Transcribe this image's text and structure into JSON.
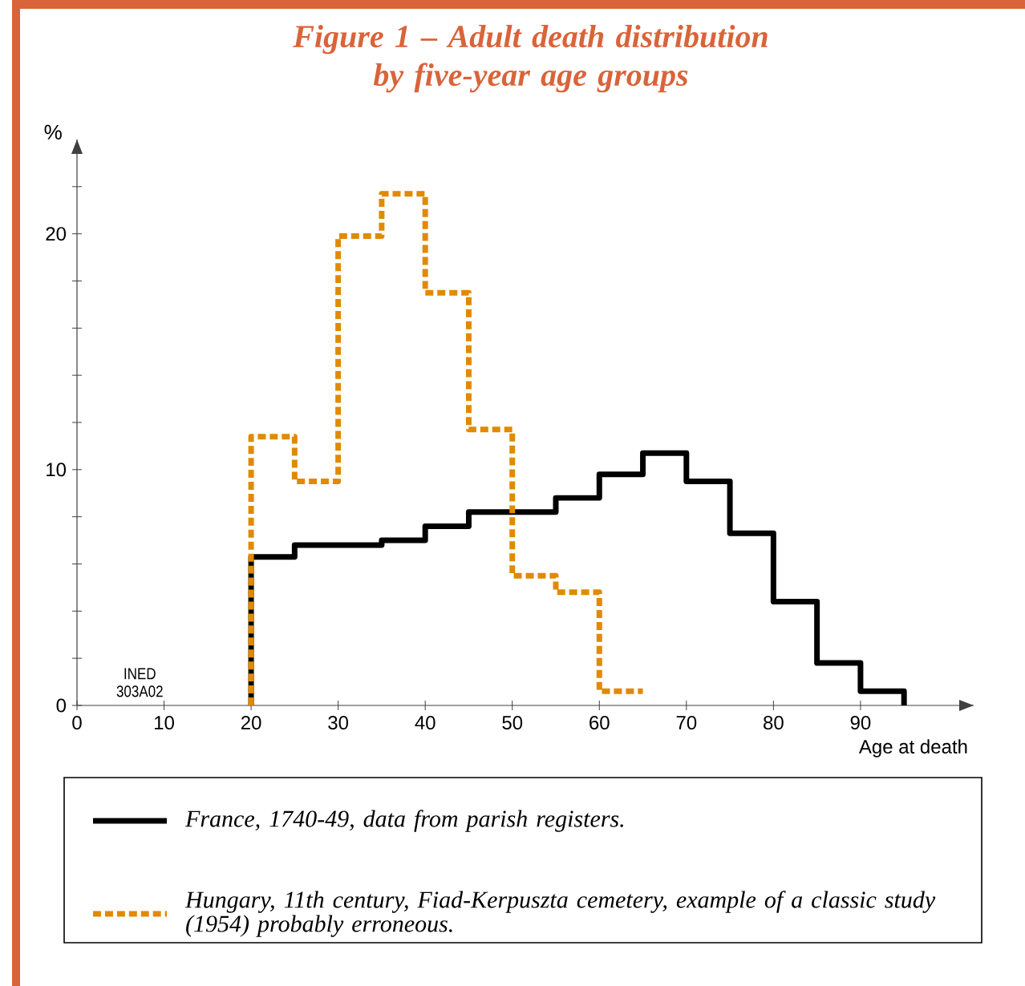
{
  "chart_data": {
    "type": "step",
    "title": "Figure 1 – Adult death distribution by five-year age groups",
    "xlabel": "Age at death",
    "ylabel": "%",
    "annotations": [
      "INED 303A02"
    ],
    "xlim": [
      0,
      103
    ],
    "xticks": [
      0,
      10,
      20,
      30,
      40,
      50,
      60,
      70,
      80,
      90
    ],
    "ylim": [
      0,
      24
    ],
    "yticks": [
      0,
      {
        "value": 2,
        "label": null
      },
      {
        "value": 4,
        "label": null
      },
      {
        "value": 6,
        "label": null
      },
      {
        "value": 8,
        "label": null
      },
      10,
      {
        "value": 12,
        "label": null
      },
      {
        "value": 14,
        "label": null
      },
      {
        "value": 16,
        "label": null
      },
      {
        "value": 18,
        "label": null
      },
      20,
      {
        "value": 22,
        "label": null
      }
    ],
    "grid": false,
    "legend": "bottom",
    "series": [
      {
        "name": "France, 1740-49, data from parish registers.",
        "color": "#000000",
        "line_style": "solid",
        "x": [
          20,
          20,
          25,
          30,
          35,
          40,
          45,
          50,
          55,
          60,
          65,
          70,
          75,
          80,
          85,
          90,
          95
        ],
        "values": [
          0,
          6.3,
          6.8,
          6.8,
          7.0,
          7.6,
          8.2,
          8.2,
          8.8,
          9.8,
          10.7,
          9.5,
          7.3,
          4.4,
          1.8,
          0.6,
          0
        ]
      },
      {
        "name": "Hungary, 11th century, Fiad-Kerpuszta cemetery, example of a classic study (1954) probably erroneous.",
        "color": "#e08a00",
        "line_style": "dashed",
        "x": [
          20,
          20,
          25,
          30,
          35,
          40,
          45,
          50,
          55,
          60,
          65
        ],
        "values": [
          0,
          11.4,
          9.5,
          19.9,
          21.7,
          17.5,
          11.7,
          5.5,
          4.8,
          0.6,
          0.6
        ]
      }
    ]
  }
}
